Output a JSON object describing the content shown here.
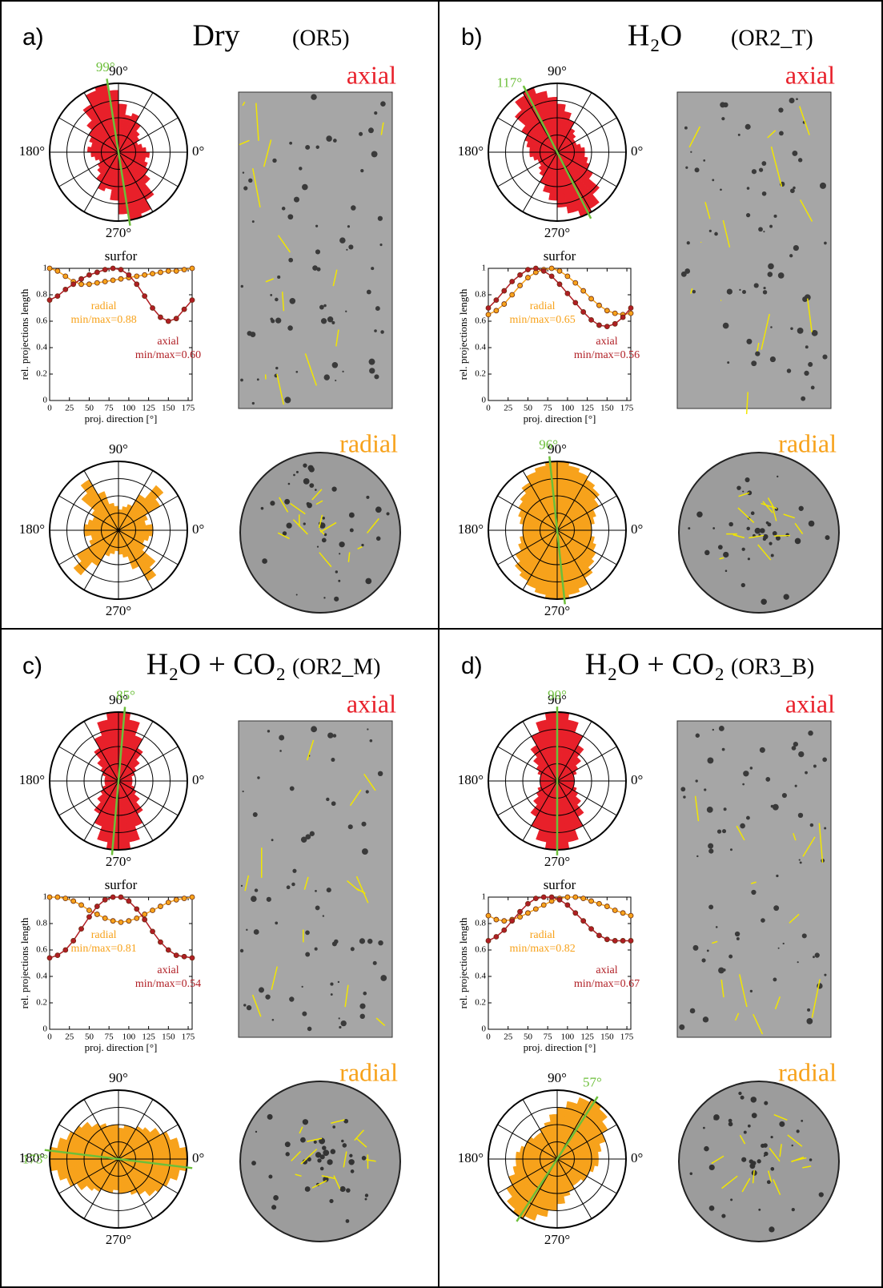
{
  "panels": [
    {
      "label": "a)",
      "title": "Dry",
      "sample": "(OR5)",
      "axial_label": "axial",
      "radial_label": "radial"
    },
    {
      "label": "b)",
      "title": "H₂O",
      "sample": "(OR2_T)",
      "axial_label": "axial",
      "radial_label": "radial"
    },
    {
      "label": "c)",
      "title": "H₂O + CO₂",
      "sample": "(OR2_M)",
      "axial_label": "axial",
      "radial_label": "radial"
    },
    {
      "label": "d)",
      "title": "H₂O + CO₂",
      "sample": "(OR3_B)",
      "axial_label": "axial",
      "radial_label": "radial"
    }
  ],
  "chart_data": [
    {
      "type": "rose",
      "color": "#e8202a",
      "rlim": [
        0,
        1
      ],
      "bin_width": 10,
      "angle_labels": [
        "90°",
        "180°",
        "0°",
        "270°"
      ],
      "dominant_direction": {
        "value": 99,
        "label": "99°"
      },
      "marker_color": "#6cbf3a",
      "values": [
        0.4,
        0.35,
        0.3,
        0.35,
        0.4,
        0.5,
        0.6,
        0.55,
        0.7,
        0.9,
        1.0,
        0.95,
        0.8,
        0.6,
        0.5,
        0.45,
        0.4,
        0.45
      ]
    },
    {
      "type": "line",
      "title": "surfor",
      "ylabel": "rel. projections length",
      "xlabel": "proj. direction [°]",
      "xlim": [
        0,
        180
      ],
      "ylim": [
        0,
        1
      ],
      "xticks": [
        0,
        25,
        50,
        75,
        100,
        125,
        150,
        175
      ],
      "yticks": [
        0,
        0.2,
        0.4,
        0.6,
        0.8,
        1
      ],
      "x": [
        0,
        10,
        20,
        30,
        40,
        50,
        60,
        70,
        80,
        90,
        100,
        110,
        120,
        130,
        140,
        150,
        160,
        170,
        180
      ],
      "series": [
        {
          "name": "radial",
          "color": "#f7a21b",
          "annotation": "min/max=0.88",
          "values": [
            1.0,
            0.98,
            0.94,
            0.9,
            0.88,
            0.88,
            0.89,
            0.9,
            0.91,
            0.92,
            0.93,
            0.94,
            0.95,
            0.96,
            0.97,
            0.98,
            0.98,
            0.99,
            1.0
          ]
        },
        {
          "name": "axial",
          "color": "#b01e24",
          "annotation": "min/max=0.60",
          "values": [
            0.76,
            0.79,
            0.84,
            0.88,
            0.92,
            0.95,
            0.97,
            0.99,
            1.0,
            0.99,
            0.95,
            0.88,
            0.79,
            0.7,
            0.63,
            0.6,
            0.62,
            0.69,
            0.76
          ]
        }
      ]
    },
    {
      "type": "rose",
      "color": "#f7a21b",
      "rlim": [
        0,
        1
      ],
      "bin_width": 10,
      "angle_labels": [
        "90°",
        "180°",
        "0°",
        "270°"
      ],
      "values": [
        0.5,
        0.4,
        0.45,
        0.7,
        0.85,
        0.6,
        0.4,
        0.35,
        0.3,
        0.35,
        0.4,
        0.6,
        0.85,
        0.7,
        0.45,
        0.4,
        0.45,
        0.5
      ]
    },
    {
      "type": "rose",
      "color": "#e8202a",
      "rlim": [
        0,
        1
      ],
      "bin_width": 10,
      "angle_labels": [
        "90°",
        "180°",
        "0°",
        "270°"
      ],
      "dominant_direction": {
        "value": 117,
        "label": "117°"
      },
      "marker_color": "#6cbf3a",
      "values": [
        0.4,
        0.35,
        0.3,
        0.3,
        0.35,
        0.4,
        0.5,
        0.6,
        0.7,
        0.8,
        0.9,
        1.0,
        0.95,
        0.8,
        0.6,
        0.5,
        0.45,
        0.4
      ]
    },
    {
      "type": "line",
      "title": "surfor",
      "ylabel": "rel. projections length",
      "xlabel": "proj. direction [°]",
      "xlim": [
        0,
        180
      ],
      "ylim": [
        0,
        1
      ],
      "xticks": [
        0,
        25,
        50,
        75,
        100,
        125,
        150,
        175
      ],
      "yticks": [
        0,
        0.2,
        0.4,
        0.6,
        0.8,
        1
      ],
      "x": [
        0,
        10,
        20,
        30,
        40,
        50,
        60,
        70,
        80,
        90,
        100,
        110,
        120,
        130,
        140,
        150,
        160,
        170,
        180
      ],
      "series": [
        {
          "name": "radial",
          "color": "#f7a21b",
          "annotation": "min/max=0.65",
          "values": [
            0.65,
            0.68,
            0.73,
            0.8,
            0.87,
            0.93,
            0.97,
            0.99,
            1.0,
            0.98,
            0.94,
            0.89,
            0.83,
            0.77,
            0.72,
            0.68,
            0.66,
            0.65,
            0.66
          ]
        },
        {
          "name": "axial",
          "color": "#b01e24",
          "annotation": "min/max=0.56",
          "values": [
            0.7,
            0.76,
            0.83,
            0.9,
            0.95,
            0.99,
            1.0,
            0.98,
            0.94,
            0.88,
            0.81,
            0.74,
            0.67,
            0.61,
            0.57,
            0.56,
            0.58,
            0.63,
            0.7
          ]
        }
      ]
    },
    {
      "type": "rose",
      "color": "#f7a21b",
      "rlim": [
        0,
        1
      ],
      "bin_width": 10,
      "angle_labels": [
        "90°",
        "180°",
        "0°",
        "270°"
      ],
      "dominant_direction": {
        "value": 96,
        "label": "96°"
      },
      "marker_color": "#6cbf3a",
      "values": [
        0.5,
        0.55,
        0.6,
        0.7,
        0.8,
        0.85,
        0.9,
        0.95,
        1.0,
        1.0,
        0.95,
        0.9,
        0.8,
        0.7,
        0.65,
        0.6,
        0.55,
        0.5
      ]
    },
    {
      "type": "rose",
      "color": "#e8202a",
      "rlim": [
        0,
        1
      ],
      "bin_width": 10,
      "angle_labels": [
        "90°",
        "180°",
        "0°",
        "270°"
      ],
      "dominant_direction": {
        "value": 85,
        "label": "85°"
      },
      "marker_color": "#6cbf3a",
      "values": [
        0.2,
        0.2,
        0.25,
        0.3,
        0.4,
        0.55,
        0.7,
        0.9,
        1.0,
        1.0,
        0.9,
        0.7,
        0.55,
        0.4,
        0.3,
        0.25,
        0.2,
        0.2
      ]
    },
    {
      "type": "line",
      "title": "surfor",
      "ylabel": "rel. projections length",
      "xlabel": "proj. direction [°]",
      "xlim": [
        0,
        180
      ],
      "ylim": [
        0,
        1
      ],
      "xticks": [
        0,
        25,
        50,
        75,
        100,
        125,
        150,
        175
      ],
      "yticks": [
        0,
        0.2,
        0.4,
        0.6,
        0.8,
        1
      ],
      "x": [
        0,
        10,
        20,
        30,
        40,
        50,
        60,
        70,
        80,
        90,
        100,
        110,
        120,
        130,
        140,
        150,
        160,
        170,
        180
      ],
      "series": [
        {
          "name": "radial",
          "color": "#f7a21b",
          "annotation": "min/max=0.81",
          "values": [
            1.0,
            1.0,
            0.99,
            0.97,
            0.94,
            0.9,
            0.87,
            0.84,
            0.82,
            0.81,
            0.82,
            0.84,
            0.87,
            0.9,
            0.93,
            0.96,
            0.98,
            0.99,
            1.0
          ]
        },
        {
          "name": "axial",
          "color": "#b01e24",
          "annotation": "min/max=0.54",
          "values": [
            0.54,
            0.56,
            0.6,
            0.67,
            0.76,
            0.85,
            0.93,
            0.98,
            1.0,
            1.0,
            0.97,
            0.91,
            0.83,
            0.74,
            0.66,
            0.6,
            0.56,
            0.55,
            0.54
          ]
        }
      ]
    },
    {
      "type": "rose",
      "color": "#f7a21b",
      "rlim": [
        0,
        1
      ],
      "bin_width": 10,
      "angle_labels": [
        "90°",
        "180°",
        "0°",
        "270°"
      ],
      "dominant_direction": {
        "value": 173,
        "label": "173°"
      },
      "marker_color": "#6cbf3a",
      "values": [
        1.0,
        0.9,
        0.8,
        0.7,
        0.6,
        0.55,
        0.5,
        0.5,
        0.45,
        0.5,
        0.5,
        0.55,
        0.6,
        0.7,
        0.75,
        0.8,
        0.9,
        1.0
      ]
    },
    {
      "type": "rose",
      "color": "#e8202a",
      "rlim": [
        0,
        1
      ],
      "bin_width": 10,
      "angle_labels": [
        "90°",
        "180°",
        "0°",
        "270°"
      ],
      "dominant_direction": {
        "value": 90,
        "label": "90°"
      },
      "marker_color": "#6cbf3a",
      "values": [
        0.25,
        0.25,
        0.3,
        0.35,
        0.45,
        0.6,
        0.75,
        0.9,
        1.0,
        1.0,
        0.9,
        0.75,
        0.6,
        0.45,
        0.35,
        0.3,
        0.25,
        0.25
      ]
    },
    {
      "type": "line",
      "title": "surfor",
      "ylabel": "rel. projections length",
      "xlabel": "proj. direction [°]",
      "xlim": [
        0,
        180
      ],
      "ylim": [
        0,
        1
      ],
      "xticks": [
        0,
        25,
        50,
        75,
        100,
        125,
        150,
        175
      ],
      "yticks": [
        0,
        0.2,
        0.4,
        0.6,
        0.8,
        1
      ],
      "x": [
        0,
        10,
        20,
        30,
        40,
        50,
        60,
        70,
        80,
        90,
        100,
        110,
        120,
        130,
        140,
        150,
        160,
        170,
        180
      ],
      "series": [
        {
          "name": "radial",
          "color": "#f7a21b",
          "annotation": "min/max=0.82",
          "values": [
            0.86,
            0.83,
            0.82,
            0.83,
            0.85,
            0.88,
            0.91,
            0.94,
            0.97,
            0.99,
            1.0,
            1.0,
            0.99,
            0.97,
            0.95,
            0.93,
            0.9,
            0.88,
            0.86
          ]
        },
        {
          "name": "axial",
          "color": "#b01e24",
          "annotation": "min/max=0.67",
          "values": [
            0.67,
            0.7,
            0.75,
            0.82,
            0.89,
            0.95,
            0.99,
            1.0,
            1.0,
            0.98,
            0.94,
            0.88,
            0.82,
            0.76,
            0.71,
            0.68,
            0.67,
            0.67,
            0.67
          ]
        }
      ]
    },
    {
      "type": "rose",
      "color": "#f7a21b",
      "rlim": [
        0,
        1
      ],
      "bin_width": 10,
      "angle_labels": [
        "90°",
        "180°",
        "0°",
        "270°"
      ],
      "dominant_direction": {
        "value": 57,
        "label": "57°"
      },
      "marker_color": "#6cbf3a",
      "values": [
        0.6,
        0.65,
        0.75,
        0.85,
        0.95,
        1.0,
        0.95,
        0.85,
        0.75,
        0.65,
        0.55,
        0.5,
        0.45,
        0.45,
        0.5,
        0.5,
        0.55,
        0.6
      ]
    }
  ]
}
